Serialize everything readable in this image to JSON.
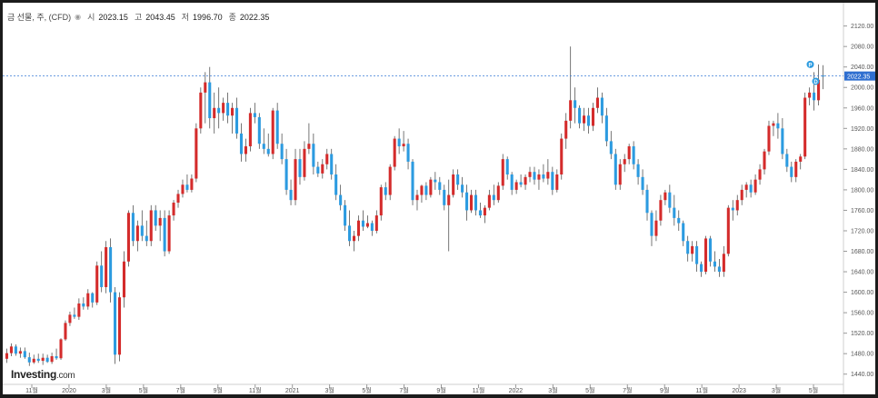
{
  "header": {
    "instrument": "금 선물, 주, (CFD)",
    "open_label": "시",
    "open": "2023.15",
    "high_label": "고",
    "high": "2043.45",
    "low_label": "저",
    "low": "1996.70",
    "close_label": "종",
    "close": "2022.35"
  },
  "branding": {
    "logo": "Investing",
    "domain": ".com"
  },
  "chart_data": {
    "type": "candlestick",
    "y_axis_position": "right",
    "ylim": [
      1420,
      2130
    ],
    "y_ticks": [
      1440,
      1480,
      1520,
      1560,
      1600,
      1640,
      1680,
      1720,
      1760,
      1800,
      1840,
      1880,
      1920,
      1960,
      2000,
      2040,
      2080,
      2120
    ],
    "y_tick_labels": [
      "1440.00",
      "1480.00",
      "1520.00",
      "1560.00",
      "1600.00",
      "1640.00",
      "1680.00",
      "1720.00",
      "1760.00",
      "1800.00",
      "1840.00",
      "1880.00",
      "1920.00",
      "1960.00",
      "2000.00",
      "2040.00",
      "2080.00",
      "2120.00"
    ],
    "x_tick_labels": [
      "11월",
      "2020",
      "3월",
      "5월",
      "7월",
      "9월",
      "11월",
      "2021",
      "3월",
      "5월",
      "7월",
      "9월",
      "11월",
      "2022",
      "3월",
      "5월",
      "7월",
      "9월",
      "11월",
      "2023",
      "3월",
      "5월"
    ],
    "current_price": 2022.35,
    "current_price_label": "2022.35",
    "up_color": "#d42b2b",
    "down_color": "#2c9be0",
    "grid": false,
    "markers": [
      "P",
      "D"
    ],
    "candles": [
      [
        1470,
        1490,
        1462,
        1481
      ],
      [
        1481,
        1500,
        1475,
        1494
      ],
      [
        1494,
        1498,
        1476,
        1480
      ],
      [
        1480,
        1492,
        1472,
        1485
      ],
      [
        1485,
        1492,
        1470,
        1473
      ],
      [
        1473,
        1482,
        1456,
        1463
      ],
      [
        1463,
        1478,
        1460,
        1470
      ],
      [
        1470,
        1480,
        1462,
        1466
      ],
      [
        1466,
        1480,
        1458,
        1472
      ],
      [
        1472,
        1478,
        1462,
        1464
      ],
      [
        1464,
        1482,
        1460,
        1475
      ],
      [
        1475,
        1490,
        1468,
        1471
      ],
      [
        1471,
        1510,
        1468,
        1508
      ],
      [
        1508,
        1545,
        1505,
        1540
      ],
      [
        1540,
        1562,
        1534,
        1556
      ],
      [
        1556,
        1570,
        1548,
        1552
      ],
      [
        1552,
        1588,
        1546,
        1578
      ],
      [
        1578,
        1590,
        1566,
        1572
      ],
      [
        1572,
        1606,
        1566,
        1598
      ],
      [
        1598,
        1600,
        1570,
        1580
      ],
      [
        1580,
        1660,
        1575,
        1652
      ],
      [
        1652,
        1680,
        1600,
        1610
      ],
      [
        1610,
        1700,
        1598,
        1688
      ],
      [
        1688,
        1705,
        1580,
        1600
      ],
      [
        1600,
        1610,
        1460,
        1478
      ],
      [
        1478,
        1600,
        1465,
        1590
      ],
      [
        1590,
        1680,
        1570,
        1660
      ],
      [
        1660,
        1760,
        1650,
        1755
      ],
      [
        1755,
        1770,
        1690,
        1700
      ],
      [
        1700,
        1740,
        1680,
        1730
      ],
      [
        1730,
        1760,
        1700,
        1710
      ],
      [
        1710,
        1740,
        1690,
        1700
      ],
      [
        1700,
        1770,
        1690,
        1760
      ],
      [
        1760,
        1770,
        1720,
        1730
      ],
      [
        1730,
        1760,
        1700,
        1745
      ],
      [
        1745,
        1760,
        1670,
        1680
      ],
      [
        1680,
        1760,
        1675,
        1750
      ],
      [
        1750,
        1780,
        1740,
        1775
      ],
      [
        1775,
        1800,
        1765,
        1792
      ],
      [
        1792,
        1820,
        1785,
        1810
      ],
      [
        1810,
        1830,
        1795,
        1800
      ],
      [
        1800,
        1830,
        1795,
        1822
      ],
      [
        1822,
        1930,
        1815,
        1920
      ],
      [
        1920,
        2000,
        1910,
        1990
      ],
      [
        1990,
        2030,
        1930,
        2010
      ],
      [
        2010,
        2040,
        1920,
        1940
      ],
      [
        1940,
        1990,
        1910,
        1960
      ],
      [
        1960,
        2000,
        1920,
        1950
      ],
      [
        1950,
        1980,
        1935,
        1970
      ],
      [
        1970,
        1990,
        1930,
        1945
      ],
      [
        1945,
        1970,
        1910,
        1960
      ],
      [
        1960,
        1980,
        1900,
        1910
      ],
      [
        1910,
        1930,
        1855,
        1870
      ],
      [
        1870,
        1900,
        1855,
        1885
      ],
      [
        1885,
        1960,
        1875,
        1950
      ],
      [
        1950,
        1970,
        1930,
        1942
      ],
      [
        1942,
        1950,
        1880,
        1890
      ],
      [
        1890,
        1920,
        1870,
        1880
      ],
      [
        1880,
        1910,
        1865,
        1870
      ],
      [
        1870,
        1960,
        1860,
        1955
      ],
      [
        1955,
        1970,
        1880,
        1890
      ],
      [
        1890,
        1910,
        1850,
        1860
      ],
      [
        1860,
        1880,
        1790,
        1800
      ],
      [
        1800,
        1820,
        1770,
        1780
      ],
      [
        1780,
        1880,
        1770,
        1860
      ],
      [
        1860,
        1880,
        1810,
        1825
      ],
      [
        1825,
        1895,
        1818,
        1880
      ],
      [
        1880,
        1930,
        1870,
        1890
      ],
      [
        1890,
        1910,
        1830,
        1845
      ],
      [
        1845,
        1855,
        1825,
        1832
      ],
      [
        1832,
        1860,
        1822,
        1850
      ],
      [
        1850,
        1880,
        1840,
        1870
      ],
      [
        1870,
        1880,
        1820,
        1830
      ],
      [
        1830,
        1850,
        1780,
        1790
      ],
      [
        1790,
        1810,
        1760,
        1770
      ],
      [
        1770,
        1780,
        1720,
        1730
      ],
      [
        1730,
        1760,
        1690,
        1700
      ],
      [
        1700,
        1720,
        1680,
        1710
      ],
      [
        1710,
        1750,
        1700,
        1740
      ],
      [
        1740,
        1760,
        1720,
        1728
      ],
      [
        1728,
        1750,
        1725,
        1735
      ],
      [
        1735,
        1740,
        1710,
        1720
      ],
      [
        1720,
        1760,
        1715,
        1750
      ],
      [
        1750,
        1810,
        1740,
        1805
      ],
      [
        1805,
        1815,
        1780,
        1790
      ],
      [
        1790,
        1850,
        1780,
        1845
      ],
      [
        1845,
        1905,
        1838,
        1900
      ],
      [
        1900,
        1920,
        1870,
        1885
      ],
      [
        1885,
        1915,
        1875,
        1890
      ],
      [
        1890,
        1900,
        1840,
        1855
      ],
      [
        1855,
        1860,
        1770,
        1780
      ],
      [
        1780,
        1800,
        1760,
        1790
      ],
      [
        1790,
        1810,
        1775,
        1808
      ],
      [
        1808,
        1815,
        1780,
        1790
      ],
      [
        1790,
        1825,
        1785,
        1820
      ],
      [
        1820,
        1835,
        1800,
        1815
      ],
      [
        1815,
        1825,
        1790,
        1800
      ],
      [
        1800,
        1810,
        1760,
        1770
      ],
      [
        1770,
        1820,
        1680,
        1790
      ],
      [
        1790,
        1840,
        1785,
        1830
      ],
      [
        1830,
        1840,
        1800,
        1810
      ],
      [
        1810,
        1825,
        1785,
        1795
      ],
      [
        1795,
        1810,
        1740,
        1760
      ],
      [
        1760,
        1800,
        1755,
        1790
      ],
      [
        1790,
        1800,
        1750,
        1760
      ],
      [
        1760,
        1775,
        1745,
        1750
      ],
      [
        1750,
        1770,
        1735,
        1765
      ],
      [
        1765,
        1800,
        1760,
        1790
      ],
      [
        1790,
        1810,
        1770,
        1780
      ],
      [
        1780,
        1815,
        1775,
        1808
      ],
      [
        1808,
        1870,
        1800,
        1860
      ],
      [
        1860,
        1865,
        1820,
        1830
      ],
      [
        1830,
        1835,
        1790,
        1800
      ],
      [
        1800,
        1820,
        1792,
        1815
      ],
      [
        1815,
        1830,
        1805,
        1810
      ],
      [
        1810,
        1830,
        1800,
        1825
      ],
      [
        1825,
        1845,
        1815,
        1835
      ],
      [
        1835,
        1845,
        1810,
        1820
      ],
      [
        1820,
        1840,
        1800,
        1830
      ],
      [
        1830,
        1850,
        1815,
        1822
      ],
      [
        1822,
        1860,
        1810,
        1835
      ],
      [
        1835,
        1845,
        1790,
        1800
      ],
      [
        1800,
        1840,
        1795,
        1830
      ],
      [
        1830,
        1910,
        1820,
        1900
      ],
      [
        1900,
        1950,
        1880,
        1935
      ],
      [
        1935,
        2080,
        1920,
        1975
      ],
      [
        1975,
        2000,
        1930,
        1960
      ],
      [
        1960,
        1965,
        1920,
        1930
      ],
      [
        1930,
        1960,
        1915,
        1945
      ],
      [
        1945,
        1960,
        1910,
        1925
      ],
      [
        1925,
        1970,
        1915,
        1960
      ],
      [
        1960,
        2000,
        1950,
        1980
      ],
      [
        1980,
        1990,
        1930,
        1945
      ],
      [
        1945,
        1960,
        1885,
        1895
      ],
      [
        1895,
        1915,
        1860,
        1870
      ],
      [
        1870,
        1880,
        1800,
        1810
      ],
      [
        1810,
        1860,
        1800,
        1850
      ],
      [
        1850,
        1870,
        1835,
        1860
      ],
      [
        1860,
        1890,
        1850,
        1885
      ],
      [
        1885,
        1895,
        1840,
        1850
      ],
      [
        1850,
        1860,
        1810,
        1825
      ],
      [
        1825,
        1840,
        1790,
        1800
      ],
      [
        1800,
        1810,
        1740,
        1755
      ],
      [
        1755,
        1760,
        1690,
        1710
      ],
      [
        1710,
        1760,
        1700,
        1740
      ],
      [
        1740,
        1790,
        1730,
        1780
      ],
      [
        1780,
        1800,
        1770,
        1795
      ],
      [
        1795,
        1810,
        1755,
        1765
      ],
      [
        1765,
        1790,
        1730,
        1745
      ],
      [
        1745,
        1760,
        1720,
        1735
      ],
      [
        1735,
        1740,
        1690,
        1700
      ],
      [
        1700,
        1710,
        1660,
        1675
      ],
      [
        1675,
        1700,
        1660,
        1690
      ],
      [
        1690,
        1700,
        1640,
        1655
      ],
      [
        1655,
        1660,
        1630,
        1640
      ],
      [
        1640,
        1710,
        1635,
        1705
      ],
      [
        1705,
        1710,
        1650,
        1660
      ],
      [
        1660,
        1680,
        1640,
        1650
      ],
      [
        1650,
        1665,
        1630,
        1640
      ],
      [
        1640,
        1690,
        1630,
        1675
      ],
      [
        1675,
        1770,
        1670,
        1765
      ],
      [
        1765,
        1780,
        1740,
        1760
      ],
      [
        1760,
        1790,
        1750,
        1780
      ],
      [
        1780,
        1810,
        1770,
        1800
      ],
      [
        1800,
        1815,
        1785,
        1810
      ],
      [
        1810,
        1820,
        1785,
        1795
      ],
      [
        1795,
        1830,
        1790,
        1820
      ],
      [
        1820,
        1850,
        1810,
        1840
      ],
      [
        1840,
        1880,
        1830,
        1875
      ],
      [
        1875,
        1935,
        1868,
        1925
      ],
      [
        1925,
        1935,
        1905,
        1930
      ],
      [
        1930,
        1950,
        1900,
        1920
      ],
      [
        1920,
        1940,
        1860,
        1870
      ],
      [
        1870,
        1880,
        1835,
        1845
      ],
      [
        1845,
        1855,
        1815,
        1825
      ],
      [
        1825,
        1860,
        1815,
        1855
      ],
      [
        1855,
        1870,
        1840,
        1865
      ],
      [
        1865,
        1990,
        1860,
        1980
      ],
      [
        1980,
        2000,
        1965,
        1990
      ],
      [
        1990,
        2030,
        1955,
        1975
      ],
      [
        1975,
        2045,
        1965,
        2015
      ],
      [
        2023.15,
        2043.45,
        1996.7,
        2022.35
      ]
    ]
  }
}
